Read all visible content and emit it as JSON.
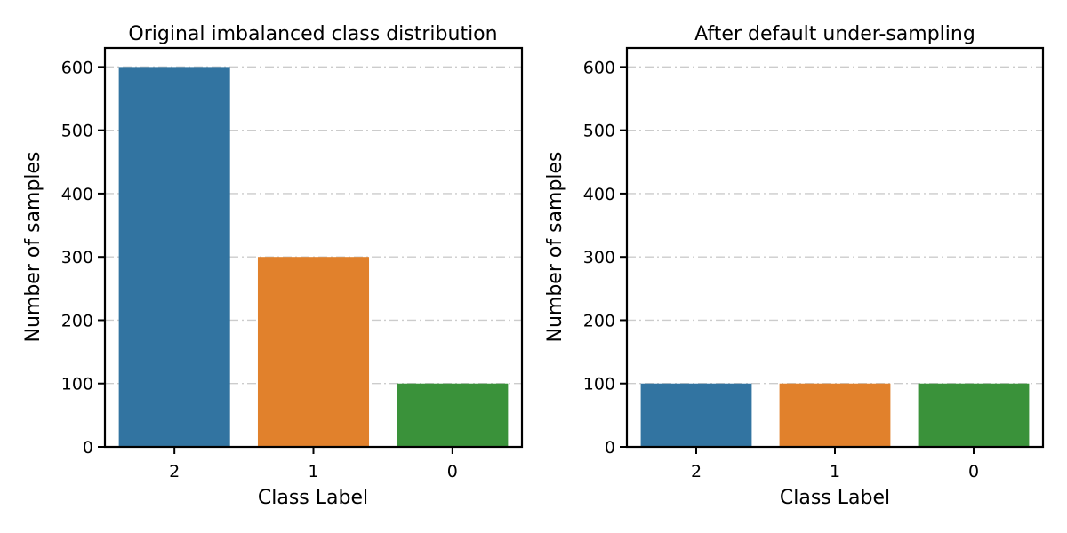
{
  "chart_data": [
    {
      "type": "bar",
      "title": "Original imbalanced class distribution",
      "xlabel": "Class Label",
      "ylabel": "Number of samples",
      "categories": [
        "2",
        "1",
        "0"
      ],
      "values": [
        600,
        300,
        100
      ],
      "colors": [
        "#3274a1",
        "#e1812c",
        "#3a923a"
      ],
      "ylim": [
        0,
        630
      ],
      "yticks": [
        "0",
        "100",
        "200",
        "300",
        "400",
        "500",
        "600"
      ],
      "grid": true,
      "grid_axis": "y"
    },
    {
      "type": "bar",
      "title": "After default under-sampling",
      "xlabel": "Class Label",
      "ylabel": "Number of samples",
      "categories": [
        "2",
        "1",
        "0"
      ],
      "values": [
        100,
        100,
        100
      ],
      "colors": [
        "#3274a1",
        "#e1812c",
        "#3a923a"
      ],
      "ylim": [
        0,
        630
      ],
      "yticks": [
        "0",
        "100",
        "200",
        "300",
        "400",
        "500",
        "600"
      ],
      "grid": true,
      "grid_axis": "y"
    }
  ]
}
